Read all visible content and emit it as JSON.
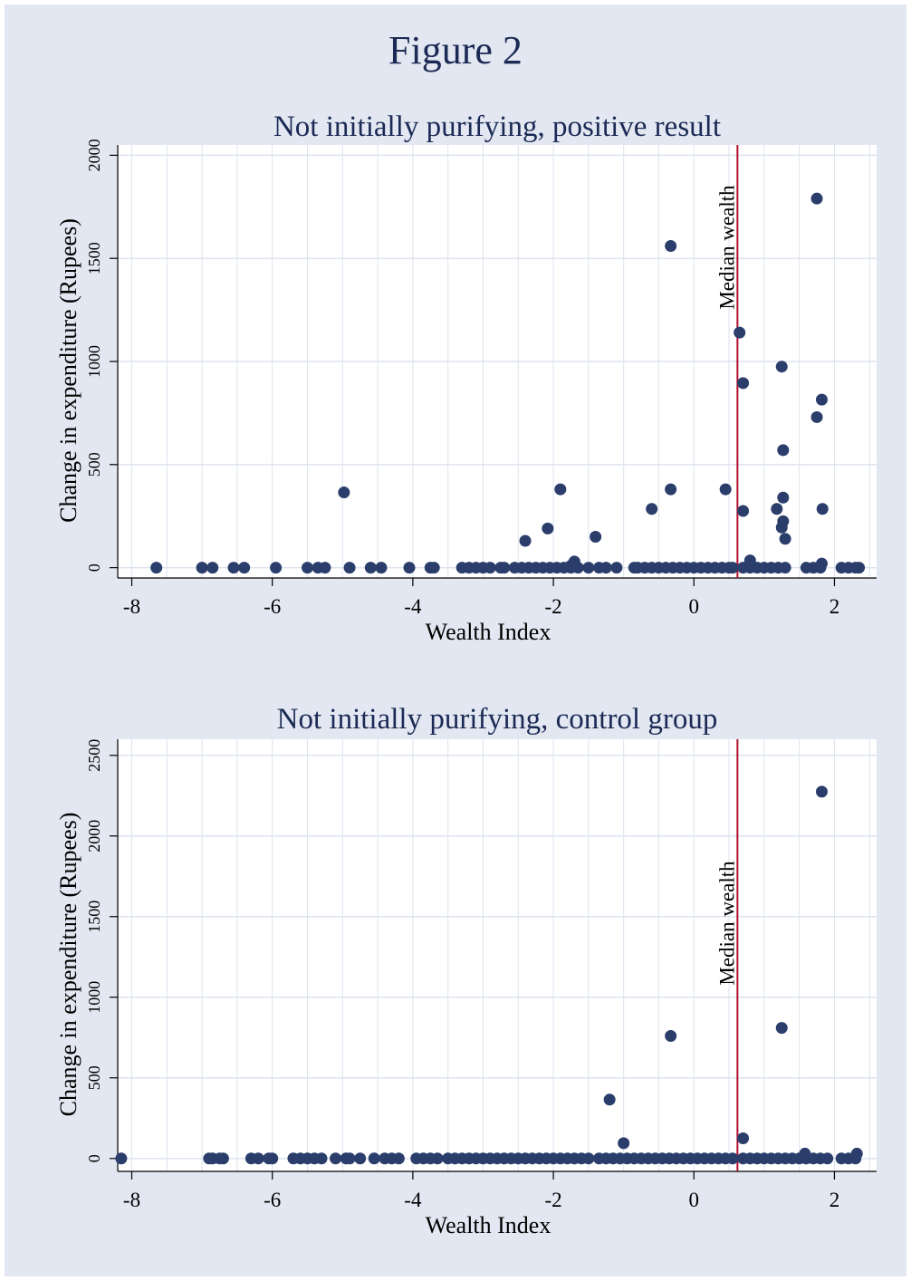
{
  "figure": {
    "title": "Figure 2"
  },
  "colors": {
    "outer_background": "#e2e7f1",
    "plot_background": "#ffffff",
    "grid": "#dde3ee",
    "marker": "#2a3d6b",
    "reference_line": "#b0102f",
    "text": "#1b2a55"
  },
  "chart_data": [
    {
      "type": "scatter",
      "title": "Not initially purifying, positive result",
      "xlabel": "Wealth Index",
      "ylabel": "Change in expenditure (Rupees)",
      "xlim": [
        -8.2,
        2.6
      ],
      "ylim": [
        -50,
        2050
      ],
      "xticks": [
        -8,
        -6,
        -4,
        -2,
        0,
        2
      ],
      "yticks": [
        0,
        500,
        1000,
        1500,
        2000
      ],
      "grid": true,
      "reference_line": {
        "x": 0.62,
        "label": "Median wealth"
      },
      "points": [
        [
          -7.65,
          0
        ],
        [
          -7.0,
          0
        ],
        [
          -6.85,
          0
        ],
        [
          -6.55,
          0
        ],
        [
          -6.4,
          0
        ],
        [
          -5.95,
          0
        ],
        [
          -5.5,
          0
        ],
        [
          -5.35,
          0
        ],
        [
          -5.25,
          0
        ],
        [
          -4.9,
          0
        ],
        [
          -4.6,
          0
        ],
        [
          -4.45,
          0
        ],
        [
          -4.05,
          0
        ],
        [
          -3.75,
          0
        ],
        [
          -3.7,
          0
        ],
        [
          -3.3,
          0
        ],
        [
          -3.2,
          0
        ],
        [
          -3.1,
          0
        ],
        [
          -3.0,
          0
        ],
        [
          -2.9,
          0
        ],
        [
          -2.75,
          0
        ],
        [
          -2.7,
          0
        ],
        [
          -2.55,
          0
        ],
        [
          -2.45,
          0
        ],
        [
          -2.35,
          0
        ],
        [
          -2.25,
          0
        ],
        [
          -2.15,
          0
        ],
        [
          -2.05,
          0
        ],
        [
          -1.95,
          0
        ],
        [
          -1.85,
          0
        ],
        [
          -1.75,
          0
        ],
        [
          -1.65,
          0
        ],
        [
          -1.5,
          0
        ],
        [
          -1.35,
          0
        ],
        [
          -1.25,
          0
        ],
        [
          -1.1,
          0
        ],
        [
          -0.85,
          0
        ],
        [
          -0.8,
          0
        ],
        [
          -0.7,
          0
        ],
        [
          -0.6,
          0
        ],
        [
          -0.5,
          0
        ],
        [
          -0.4,
          0
        ],
        [
          -0.3,
          0
        ],
        [
          -0.2,
          0
        ],
        [
          -0.1,
          0
        ],
        [
          0.0,
          0
        ],
        [
          0.1,
          0
        ],
        [
          0.2,
          0
        ],
        [
          0.3,
          0
        ],
        [
          0.4,
          0
        ],
        [
          0.5,
          0
        ],
        [
          0.55,
          0
        ],
        [
          0.7,
          0
        ],
        [
          0.8,
          0
        ],
        [
          0.9,
          0
        ],
        [
          1.0,
          0
        ],
        [
          1.1,
          0
        ],
        [
          1.2,
          0
        ],
        [
          1.3,
          0
        ],
        [
          1.6,
          0
        ],
        [
          1.7,
          0
        ],
        [
          1.8,
          0
        ],
        [
          2.1,
          0
        ],
        [
          2.2,
          0
        ],
        [
          2.3,
          0
        ],
        [
          2.35,
          0
        ],
        [
          -1.7,
          30
        ],
        [
          -1.75,
          10
        ],
        [
          0.8,
          35
        ],
        [
          1.82,
          20
        ],
        [
          -2.4,
          130
        ],
        [
          -2.08,
          190
        ],
        [
          -1.9,
          380
        ],
        [
          -1.4,
          150
        ],
        [
          -4.98,
          365
        ],
        [
          -0.6,
          285
        ],
        [
          -0.33,
          380
        ],
        [
          0.45,
          380
        ],
        [
          0.7,
          275
        ],
        [
          -0.33,
          1560
        ],
        [
          0.65,
          1140
        ],
        [
          0.7,
          895
        ],
        [
          1.25,
          975
        ],
        [
          1.27,
          570
        ],
        [
          1.27,
          340
        ],
        [
          1.18,
          285
        ],
        [
          1.25,
          195
        ],
        [
          1.27,
          225
        ],
        [
          1.3,
          140
        ],
        [
          1.75,
          1790
        ],
        [
          1.82,
          815
        ],
        [
          1.75,
          730
        ],
        [
          1.83,
          285
        ]
      ]
    },
    {
      "type": "scatter",
      "title": "Not initially purifying, control group",
      "xlabel": "Wealth Index",
      "ylabel": "Change in expenditure (Rupees)",
      "xlim": [
        -8.2,
        2.6
      ],
      "ylim": [
        -80,
        2600
      ],
      "xticks": [
        -8,
        -6,
        -4,
        -2,
        0,
        2
      ],
      "yticks": [
        0,
        500,
        1000,
        1500,
        2000,
        2500
      ],
      "grid": true,
      "reference_line": {
        "x": 0.62,
        "label": "Median wealth"
      },
      "points": [
        [
          -8.15,
          0
        ],
        [
          -6.9,
          0
        ],
        [
          -6.85,
          0
        ],
        [
          -6.75,
          0
        ],
        [
          -6.7,
          0
        ],
        [
          -6.3,
          0
        ],
        [
          -6.2,
          0
        ],
        [
          -6.05,
          0
        ],
        [
          -6.0,
          0
        ],
        [
          -5.7,
          0
        ],
        [
          -5.6,
          0
        ],
        [
          -5.5,
          0
        ],
        [
          -5.4,
          0
        ],
        [
          -5.3,
          0
        ],
        [
          -5.1,
          0
        ],
        [
          -4.95,
          0
        ],
        [
          -4.9,
          0
        ],
        [
          -4.75,
          0
        ],
        [
          -4.55,
          0
        ],
        [
          -4.4,
          0
        ],
        [
          -4.3,
          0
        ],
        [
          -4.2,
          0
        ],
        [
          -3.95,
          0
        ],
        [
          -3.85,
          0
        ],
        [
          -3.75,
          0
        ],
        [
          -3.65,
          0
        ],
        [
          -3.5,
          0
        ],
        [
          -3.4,
          0
        ],
        [
          -3.3,
          0
        ],
        [
          -3.2,
          0
        ],
        [
          -3.1,
          0
        ],
        [
          -3.0,
          0
        ],
        [
          -2.9,
          0
        ],
        [
          -2.8,
          0
        ],
        [
          -2.7,
          0
        ],
        [
          -2.6,
          0
        ],
        [
          -2.5,
          0
        ],
        [
          -2.4,
          0
        ],
        [
          -2.3,
          0
        ],
        [
          -2.2,
          0
        ],
        [
          -2.1,
          0
        ],
        [
          -2.0,
          0
        ],
        [
          -1.9,
          0
        ],
        [
          -1.8,
          0
        ],
        [
          -1.7,
          0
        ],
        [
          -1.6,
          0
        ],
        [
          -1.5,
          0
        ],
        [
          -1.35,
          0
        ],
        [
          -1.25,
          0
        ],
        [
          -1.15,
          0
        ],
        [
          -1.05,
          0
        ],
        [
          -0.95,
          0
        ],
        [
          -0.85,
          0
        ],
        [
          -0.75,
          0
        ],
        [
          -0.65,
          0
        ],
        [
          -0.55,
          0
        ],
        [
          -0.45,
          0
        ],
        [
          -0.35,
          0
        ],
        [
          -0.25,
          0
        ],
        [
          -0.15,
          0
        ],
        [
          -0.05,
          0
        ],
        [
          0.05,
          0
        ],
        [
          0.15,
          0
        ],
        [
          0.25,
          0
        ],
        [
          0.35,
          0
        ],
        [
          0.45,
          0
        ],
        [
          0.55,
          0
        ],
        [
          0.7,
          0
        ],
        [
          0.8,
          0
        ],
        [
          0.9,
          0
        ],
        [
          1.0,
          0
        ],
        [
          1.1,
          0
        ],
        [
          1.2,
          0
        ],
        [
          1.3,
          0
        ],
        [
          1.4,
          0
        ],
        [
          1.5,
          0
        ],
        [
          1.6,
          0
        ],
        [
          1.7,
          0
        ],
        [
          1.8,
          0
        ],
        [
          1.9,
          0
        ],
        [
          2.1,
          0
        ],
        [
          2.2,
          0
        ],
        [
          2.3,
          0
        ],
        [
          1.58,
          30
        ],
        [
          2.32,
          30
        ],
        [
          -1.2,
          365
        ],
        [
          -1.0,
          95
        ],
        [
          -0.33,
          760
        ],
        [
          0.7,
          125
        ],
        [
          1.25,
          810
        ],
        [
          1.82,
          2275
        ]
      ]
    }
  ]
}
